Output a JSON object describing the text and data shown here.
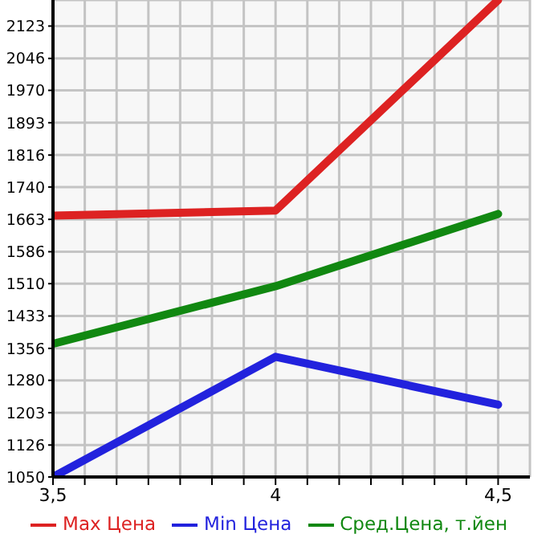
{
  "chart_data": {
    "type": "line",
    "x": [
      3.5,
      4,
      4.5
    ],
    "series": [
      {
        "name": "Max Цена",
        "color": "#dd2222",
        "values": [
          1672,
          1684,
          2185
        ]
      },
      {
        "name": "Min Цена",
        "color": "#2222dd",
        "values": [
          1050,
          1336,
          1222
        ]
      },
      {
        "name": "Сред.Цена, т.йен",
        "color": "#118811",
        "values": [
          1367,
          1504,
          1676
        ]
      }
    ],
    "xlim": [
      3.5,
      4.5714
    ],
    "xticks": [
      {
        "value": 3.5,
        "label": "3,5"
      },
      {
        "value": 3.5714,
        "label": null
      },
      {
        "value": 3.6429,
        "label": null
      },
      {
        "value": 3.7143,
        "label": null
      },
      {
        "value": 3.7857,
        "label": null
      },
      {
        "value": 3.8571,
        "label": null
      },
      {
        "value": 3.9286,
        "label": null
      },
      {
        "value": 4,
        "label": "4"
      },
      {
        "value": 4.0714,
        "label": null
      },
      {
        "value": 4.1429,
        "label": null
      },
      {
        "value": 4.2143,
        "label": null
      },
      {
        "value": 4.2857,
        "label": null
      },
      {
        "value": 4.3571,
        "label": null
      },
      {
        "value": 4.4286,
        "label": null
      },
      {
        "value": 4.5,
        "label": "4,5"
      }
    ],
    "ylim": [
      1050,
      2185
    ],
    "yticks": [
      1050,
      1126,
      1203,
      1280,
      1356,
      1433,
      1510,
      1586,
      1663,
      1740,
      1816,
      1893,
      1970,
      2046,
      2123
    ],
    "grid": true,
    "legend": "bottom",
    "marker": "none",
    "line_style": "solid"
  }
}
